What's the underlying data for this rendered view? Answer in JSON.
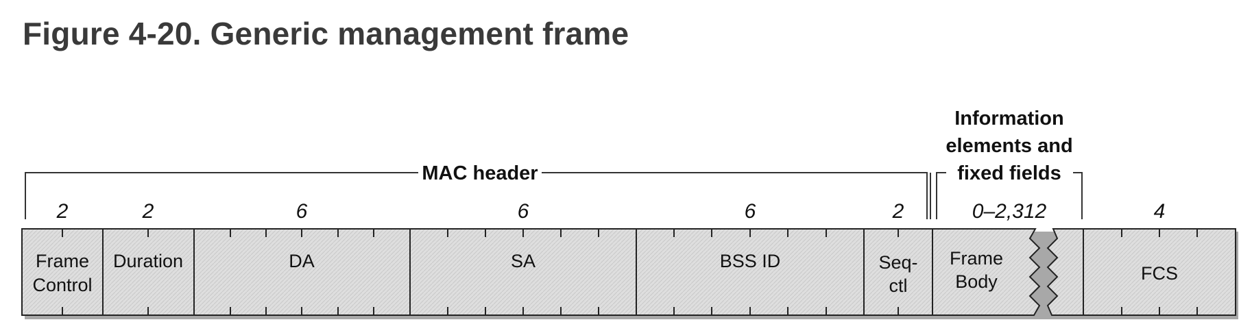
{
  "title": "Figure 4-20. Generic management frame",
  "brackets": {
    "mac_header": "MAC header",
    "info_line1": "Information",
    "info_line2": "elements and",
    "info_line3": "fixed fields"
  },
  "fields": [
    {
      "id": "frame-control",
      "name_lines": [
        "Frame",
        "Control"
      ],
      "bytes": "2"
    },
    {
      "id": "duration",
      "name_lines": [
        "Duration"
      ],
      "bytes": "2"
    },
    {
      "id": "da",
      "name_lines": [
        "DA"
      ],
      "bytes": "6"
    },
    {
      "id": "sa",
      "name_lines": [
        "SA"
      ],
      "bytes": "6"
    },
    {
      "id": "bssid",
      "name_lines": [
        "BSS ID"
      ],
      "bytes": "6"
    },
    {
      "id": "seq-ctl",
      "name_lines": [
        "Seq-",
        "ctl"
      ],
      "bytes": "2"
    },
    {
      "id": "frame-body",
      "name_lines": [
        "Frame",
        "Body"
      ],
      "bytes": "0–2,312"
    },
    {
      "id": "fcs",
      "name_lines": [
        "FCS"
      ],
      "bytes": "4"
    }
  ],
  "colors": {
    "field_fill": "#dcdcdc",
    "stroke": "#222222",
    "shadow": "#9a9a9a",
    "title": "#3a3a3a"
  }
}
